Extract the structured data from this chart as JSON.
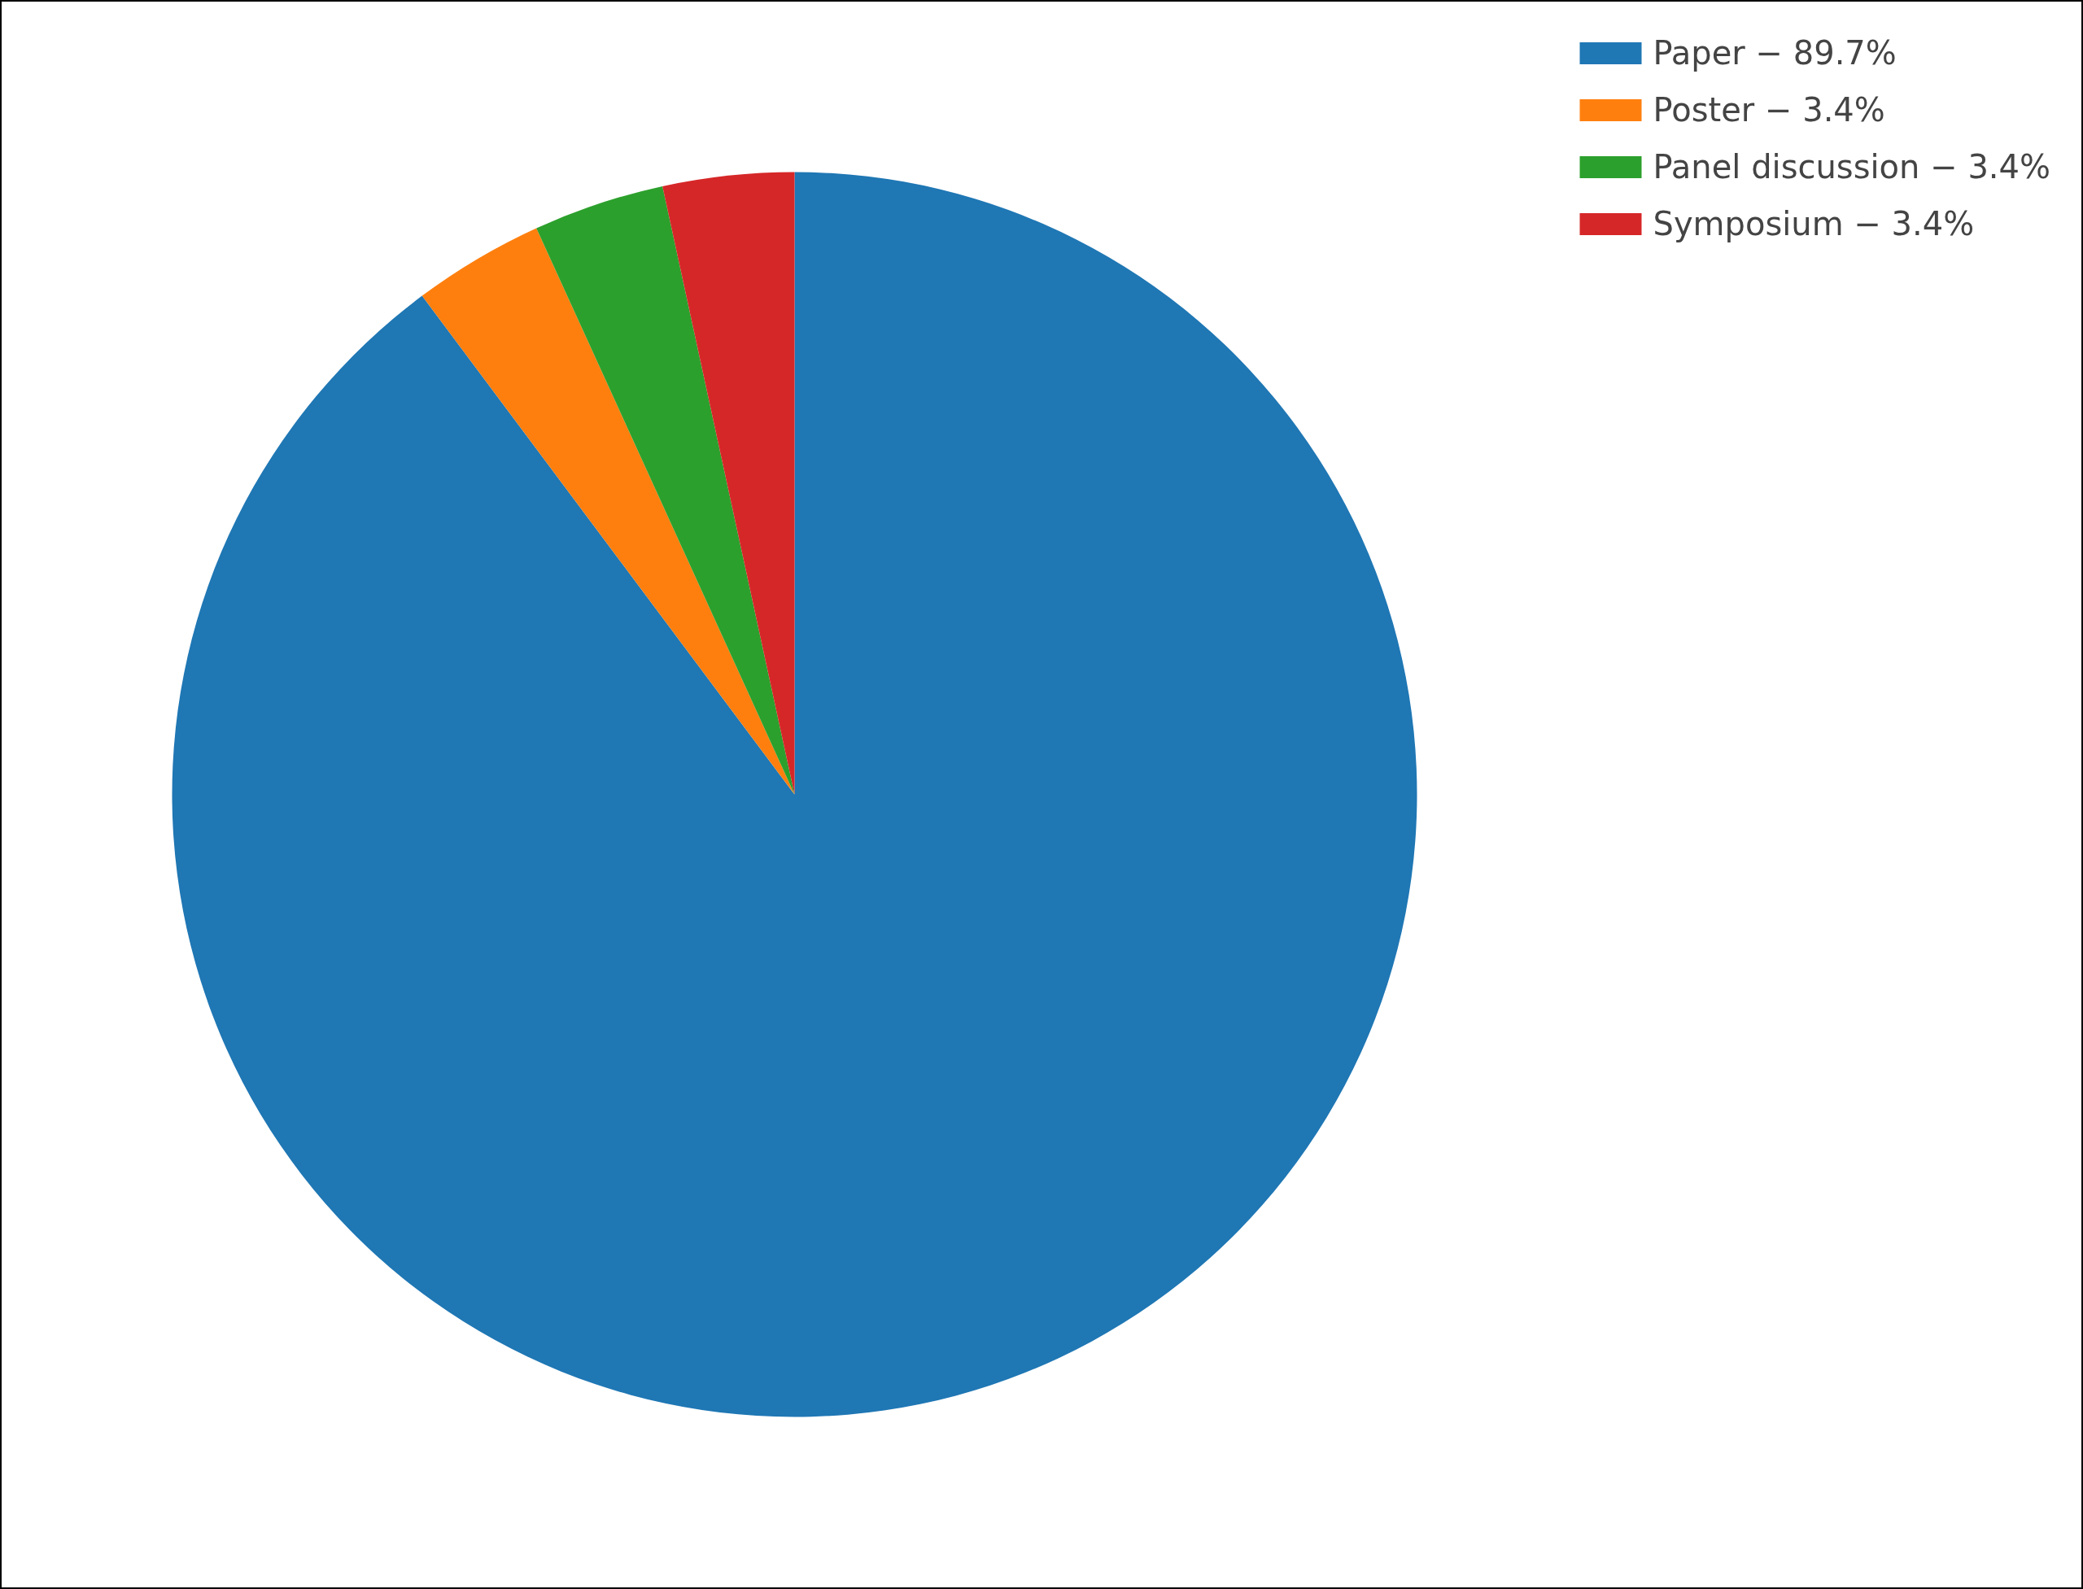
{
  "chart_data": {
    "type": "pie",
    "categories": [
      "Paper − 89.7%",
      "Poster − 3.4%",
      "Panel discussion − 3.4%",
      "Symposium − 3.4%"
    ],
    "values": [
      89.7,
      3.4,
      3.4,
      3.4
    ],
    "colors": [
      "#1f77b4",
      "#ff7f0e",
      "#2ca02c",
      "#d62728"
    ],
    "legend": "top right"
  }
}
